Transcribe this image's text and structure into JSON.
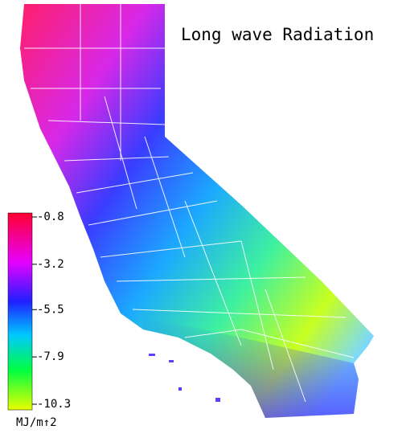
{
  "title": "Long wave Radiation",
  "legend": {
    "ticks": [
      -0.8,
      -3.2,
      -5.5,
      -7.9,
      -10.3
    ],
    "unit": "MJ/m↑2"
  }
}
